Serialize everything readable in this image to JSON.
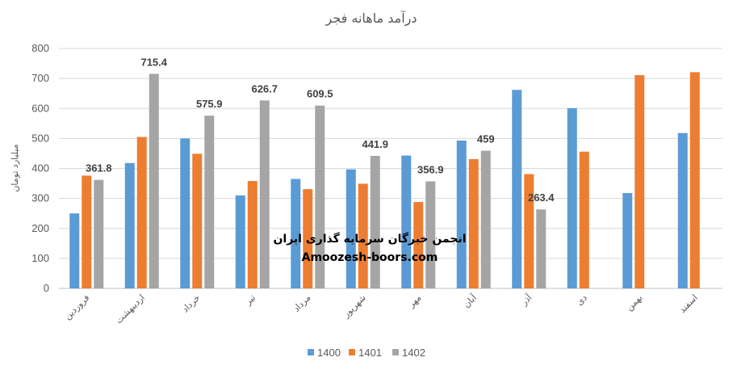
{
  "chart_data": {
    "type": "bar",
    "title": "درآمد ماهانه فجر",
    "xlabel": "",
    "ylabel": "میلیارد تومان",
    "ylim": [
      0,
      800
    ],
    "yticks": [
      0,
      100,
      200,
      300,
      400,
      500,
      600,
      700,
      800
    ],
    "grid": true,
    "legend_position": "bottom",
    "categories": [
      "فروردین",
      "اردیبهشت",
      "خرداد",
      "تیر",
      "مرداد",
      "شهریور",
      "مهر",
      "آبان",
      "آذر",
      "دی",
      "بهمن",
      "اسفند"
    ],
    "series": [
      {
        "name": "1400",
        "color": "#5B9BD5",
        "values": [
          250,
          418,
          500,
          310,
          365,
          397,
          443,
          493,
          662,
          601,
          318,
          518
        ]
      },
      {
        "name": "1401",
        "color": "#ED7D31",
        "values": [
          376,
          505,
          449,
          358,
          331,
          349,
          288,
          431,
          381,
          456,
          711,
          721
        ]
      },
      {
        "name": "1402",
        "color": "#A5A5A5",
        "values": [
          361.8,
          715.4,
          575.9,
          626.7,
          609.5,
          441.9,
          356.9,
          459,
          263.4,
          null,
          null,
          null
        ],
        "labels": [
          "361.8",
          "715.4",
          "575.9",
          "626.7",
          "609.5",
          "441.9",
          "356.9",
          "459",
          "263.4",
          "",
          "",
          ""
        ]
      }
    ]
  },
  "watermark": {
    "line1": "انجمن خبرگان سرمایه گذاری ایران",
    "line2": "Amoozesh-boors.com"
  }
}
